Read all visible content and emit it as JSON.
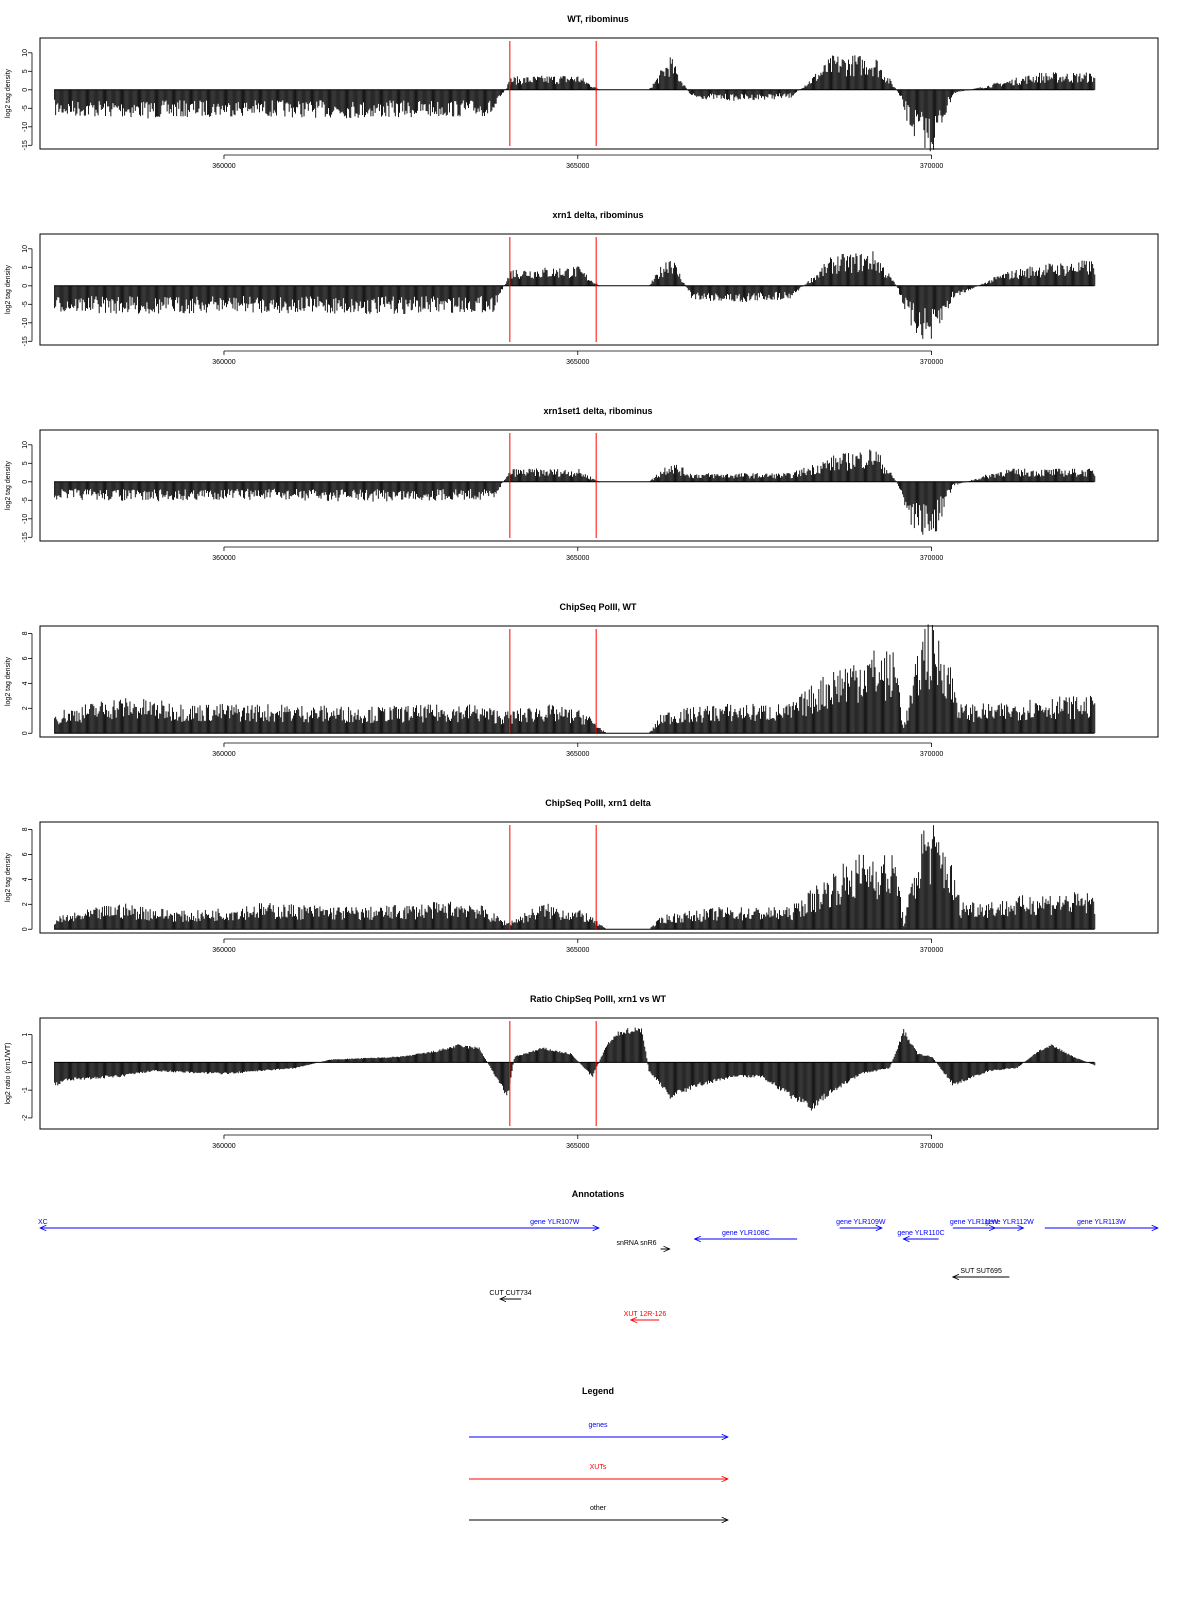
{
  "colors": {
    "signal": "#000000",
    "marker": "#ff0000",
    "gene": "#0000ff",
    "xut": "#ff0000",
    "other": "#000000"
  },
  "shared_x": {
    "label": "",
    "ticks": [
      360000,
      365000,
      370000
    ],
    "xlim": [
      357400,
      373200
    ],
    "markers": [
      364040,
      365260
    ]
  },
  "chart_data": [
    {
      "type": "area",
      "title": "WT, ribominus",
      "ylabel": "log2 tag density",
      "ylim": [
        -16,
        14
      ],
      "yticks": [
        10,
        5,
        0,
        -5,
        -10,
        -15
      ],
      "x": [
        357600,
        359000,
        360000,
        362000,
        363800,
        364050,
        365000,
        365300,
        366000,
        366300,
        366600,
        367200,
        368000,
        368600,
        369200,
        369500,
        369700,
        370000,
        370300,
        371000,
        371500,
        372300
      ],
      "values": [
        -6,
        -6.5,
        -6,
        -6.5,
        -6,
        3,
        3.5,
        0,
        0,
        8,
        -2,
        -2.5,
        -2,
        8,
        8,
        0,
        -10,
        -15,
        -1,
        2,
        4,
        4
      ]
    },
    {
      "type": "area",
      "title": "xrn1 delta, ribominus",
      "ylabel": "log2 tag density",
      "ylim": [
        -16,
        14
      ],
      "yticks": [
        10,
        5,
        0,
        -5,
        -10,
        -15
      ],
      "x": [
        357600,
        359000,
        360000,
        362000,
        363800,
        364050,
        365000,
        365300,
        366000,
        366300,
        366600,
        367200,
        368000,
        368600,
        369200,
        369500,
        369700,
        370000,
        370300,
        371000,
        371500,
        372300
      ],
      "values": [
        -6,
        -6.5,
        -6,
        -6.5,
        -6,
        4,
        4.5,
        0,
        0,
        8,
        -3,
        -4,
        -3,
        7,
        8,
        0,
        -10,
        -14,
        -3,
        3,
        5,
        6
      ]
    },
    {
      "type": "area",
      "title": "xrn1set1 delta, ribominus",
      "ylabel": "log2 tag density",
      "ylim": [
        -16,
        14
      ],
      "yticks": [
        10,
        5,
        0,
        -5,
        -10,
        -15
      ],
      "x": [
        357600,
        359000,
        360000,
        362000,
        363800,
        364050,
        365000,
        365300,
        366000,
        366300,
        366600,
        367200,
        368000,
        368600,
        369200,
        369500,
        369700,
        370000,
        370300,
        371000,
        371500,
        372300
      ],
      "values": [
        -4,
        -4.5,
        -4,
        -4.5,
        -4,
        3,
        3,
        0,
        0,
        5,
        2,
        2,
        2,
        6,
        8,
        0,
        -10,
        -14,
        -1,
        3,
        3,
        3
      ]
    },
    {
      "type": "area",
      "title": "ChipSeq PolII, WT",
      "ylabel": "log2 tag density",
      "ylim": [
        -0.3,
        8.6
      ],
      "yticks": [
        0,
        2,
        4,
        6,
        8
      ],
      "x": [
        357600,
        358500,
        359500,
        360500,
        362000,
        363500,
        364000,
        364500,
        365100,
        365400,
        366000,
        366200,
        367000,
        368000,
        368600,
        369100,
        369500,
        369600,
        369900,
        370200,
        370400,
        371000,
        371500,
        372300
      ],
      "values": [
        1.5,
        2.5,
        2,
        2,
        1.8,
        2,
        1.5,
        2,
        1.5,
        0,
        0,
        1.5,
        2,
        2,
        4.5,
        5.8,
        5.5,
        0.5,
        8,
        6,
        2,
        2,
        2.5,
        2.5
      ]
    },
    {
      "type": "area",
      "title": "ChipSeq PolII, xrn1 delta",
      "ylabel": "log2 tag density",
      "ylim": [
        -0.3,
        8.6
      ],
      "yticks": [
        0,
        2,
        4,
        6,
        8
      ],
      "x": [
        357600,
        358500,
        359500,
        360500,
        362000,
        363500,
        364000,
        364500,
        365100,
        365400,
        366000,
        366200,
        367000,
        368000,
        368600,
        369100,
        369500,
        369600,
        369900,
        370200,
        370400,
        371000,
        371500,
        372300
      ],
      "values": [
        0.8,
        1.8,
        1.2,
        1.8,
        1.5,
        2,
        0.5,
        1.8,
        1.2,
        0,
        0,
        1,
        1.5,
        1.5,
        4,
        5.5,
        5,
        0.5,
        8,
        6,
        2,
        2,
        2.5,
        2.5
      ]
    },
    {
      "type": "area",
      "title": "Ratio ChipSeq PolII, xrn1 vs WT",
      "ylabel": "log2 ratio (xrn1/WT)",
      "ylim": [
        -2.4,
        1.6
      ],
      "yticks": [
        1,
        0,
        -1,
        -2
      ],
      "x": [
        357600,
        357800,
        358500,
        359000,
        360000,
        361000,
        361500,
        362500,
        363000,
        363300,
        363600,
        364000,
        364100,
        364500,
        364900,
        365200,
        365400,
        365600,
        365900,
        366000,
        366300,
        366700,
        367200,
        367600,
        368000,
        368300,
        368600,
        369000,
        369400,
        369600,
        369800,
        370000,
        370300,
        370800,
        371200,
        371500,
        371700,
        372000,
        372300
      ],
      "values": [
        -0.8,
        -0.6,
        -0.5,
        -0.3,
        -0.4,
        -0.2,
        0.1,
        0.2,
        0.4,
        0.6,
        0.5,
        -1.2,
        0.2,
        0.5,
        0.3,
        -0.5,
        0.6,
        1.1,
        1.2,
        -0.3,
        -1.2,
        -0.8,
        -0.5,
        -0.5,
        -1.2,
        -1.6,
        -1.0,
        -0.4,
        -0.2,
        1.1,
        0.3,
        0.2,
        -0.8,
        -0.3,
        -0.2,
        0.4,
        0.6,
        0.2,
        -0.1
      ]
    }
  ],
  "annotations": {
    "title": "Annotations",
    "features": [
      {
        "label": "XC",
        "kind": "gene",
        "start": 357400,
        "end": 364500,
        "strand": "-",
        "row": 0
      },
      {
        "label": "gene YLR107W",
        "kind": "gene",
        "start": 364050,
        "end": 365300,
        "strand": "+",
        "row": 0
      },
      {
        "label": "gene YLR108C",
        "kind": "gene",
        "start": 366650,
        "end": 368100,
        "strand": "-",
        "row": 1
      },
      {
        "label": "snRNA snR6",
        "kind": "other",
        "start": 366170,
        "end": 366300,
        "strand": "+",
        "row": 2
      },
      {
        "label": "gene YLR109W",
        "kind": "gene",
        "start": 368700,
        "end": 369300,
        "strand": "+",
        "row": 0
      },
      {
        "label": "gene YLR110C",
        "kind": "gene",
        "start": 369600,
        "end": 370100,
        "strand": "-",
        "row": 1
      },
      {
        "label": "gene YLR111W",
        "kind": "gene",
        "start": 370300,
        "end": 370900,
        "strand": "+",
        "row": 0
      },
      {
        "label": "gene YLR112W",
        "kind": "gene",
        "start": 370900,
        "end": 371300,
        "strand": "+",
        "row": 0
      },
      {
        "label": "gene YLR113W",
        "kind": "gene",
        "start": 371600,
        "end": 373200,
        "strand": "+",
        "row": 0
      },
      {
        "label": "SUT SUT695",
        "kind": "other",
        "start": 370300,
        "end": 371100,
        "strand": "-",
        "row": 3
      },
      {
        "label": "CUT CUT734",
        "kind": "other",
        "start": 363900,
        "end": 364200,
        "strand": "-",
        "row": 4
      },
      {
        "label": "XUT 12R-126",
        "kind": "xut",
        "start": 365750,
        "end": 366150,
        "strand": "-",
        "row": 5
      }
    ]
  },
  "legend": {
    "title": "Legend",
    "items": [
      {
        "label": "genes",
        "kind": "gene"
      },
      {
        "label": "XUTs",
        "kind": "xut"
      },
      {
        "label": "other",
        "kind": "other"
      }
    ]
  }
}
